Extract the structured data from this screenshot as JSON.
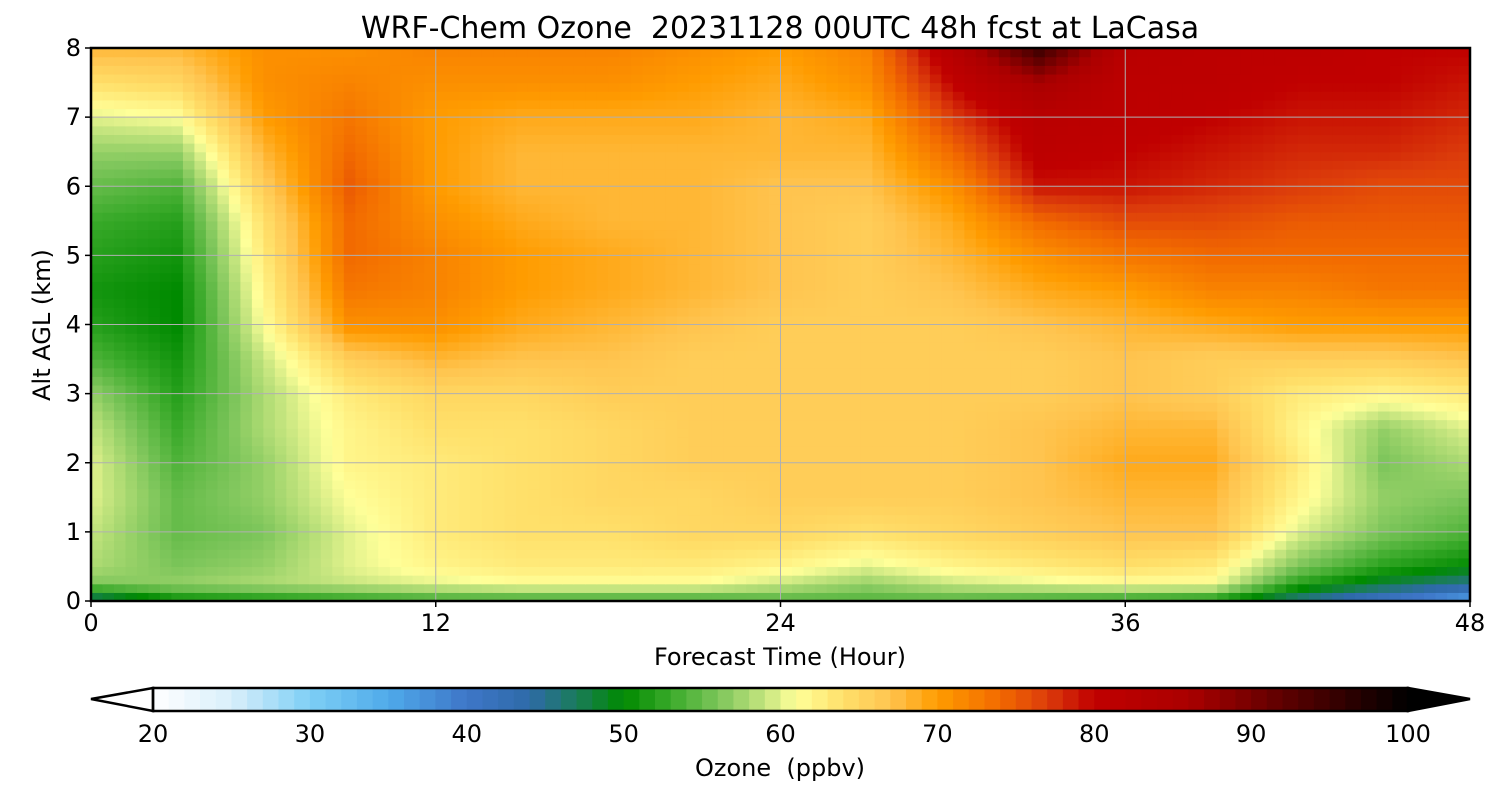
{
  "chart_data": {
    "type": "heatmap",
    "title": "WRF-Chem Ozone  20231128 00UTC 48h fcst at LaCasa",
    "xlabel": "Forecast Time (Hour)",
    "ylabel": "Alt AGL (km)",
    "xlim": [
      0,
      48
    ],
    "ylim": [
      0,
      8
    ],
    "xticks": [
      "0",
      "12",
      "24",
      "36",
      "48"
    ],
    "yticks": [
      "0",
      "1",
      "2",
      "3",
      "4",
      "5",
      "6",
      "7",
      "8"
    ],
    "grid": true,
    "x": [
      0,
      3,
      6,
      9,
      12,
      15,
      18,
      21,
      24,
      27,
      30,
      33,
      36,
      39,
      42,
      45,
      48
    ],
    "y": [
      0,
      0.25,
      0.5,
      1,
      1.5,
      2,
      2.5,
      3,
      3.5,
      4,
      4.5,
      5,
      5.5,
      6,
      6.5,
      7,
      7.5,
      8
    ],
    "z_units": "ppbv",
    "z": [
      [
        45,
        50,
        51,
        52,
        53,
        53,
        53,
        53,
        54,
        54,
        54,
        53,
        52,
        51,
        45,
        40,
        35
      ],
      [
        56,
        57,
        58,
        59,
        60,
        61,
        61,
        61,
        59,
        57,
        59,
        60,
        61,
        61,
        52,
        48,
        45
      ],
      [
        58,
        56,
        57,
        60,
        62,
        63,
        63,
        63,
        62,
        60,
        62,
        63,
        64,
        63,
        56,
        52,
        50
      ],
      [
        59,
        55,
        56,
        60,
        63,
        64,
        64,
        65,
        65,
        64,
        65,
        66,
        67,
        67,
        60,
        56,
        54
      ],
      [
        60,
        55,
        57,
        61,
        63,
        64,
        65,
        65,
        66,
        66,
        66,
        67,
        68,
        68,
        62,
        57,
        56
      ],
      [
        60,
        54,
        57,
        62,
        63,
        64,
        65,
        66,
        66,
        66,
        66,
        67,
        69,
        69,
        63,
        56,
        58
      ],
      [
        59,
        53,
        58,
        62,
        64,
        64,
        65,
        66,
        66,
        66,
        66,
        67,
        68,
        68,
        62,
        57,
        60
      ],
      [
        57,
        52,
        58,
        63,
        65,
        65,
        66,
        66,
        66,
        66,
        66,
        66,
        67,
        66,
        63,
        62,
        63
      ],
      [
        54,
        51,
        59,
        66,
        68,
        67,
        67,
        66,
        66,
        66,
        66,
        66,
        67,
        66,
        66,
        66,
        67
      ],
      [
        52,
        50,
        61,
        71,
        71,
        69,
        68,
        67,
        66,
        66,
        66,
        67,
        68,
        69,
        70,
        70,
        70
      ],
      [
        51,
        50,
        62,
        73,
        72,
        70,
        69,
        68,
        67,
        66,
        67,
        69,
        70,
        72,
        72,
        73,
        73
      ],
      [
        52,
        51,
        63,
        74,
        72,
        70,
        69,
        68,
        67,
        66,
        68,
        71,
        73,
        74,
        74,
        74,
        74
      ],
      [
        53,
        52,
        64,
        74,
        71,
        69,
        68,
        68,
        67,
        66,
        69,
        74,
        76,
        76,
        75,
        75,
        75
      ],
      [
        55,
        54,
        66,
        75,
        70,
        68,
        68,
        68,
        67,
        67,
        71,
        79,
        79,
        78,
        77,
        76,
        76
      ],
      [
        57,
        57,
        68,
        74,
        70,
        68,
        68,
        68,
        68,
        68,
        74,
        81,
        80,
        79,
        78,
        78,
        77
      ],
      [
        60,
        61,
        70,
        73,
        70,
        69,
        69,
        69,
        68,
        69,
        77,
        82,
        81,
        80,
        79,
        79,
        78
      ],
      [
        64,
        65,
        71,
        72,
        71,
        71,
        71,
        70,
        69,
        71,
        80,
        86,
        81,
        81,
        80,
        80,
        79
      ],
      [
        68,
        68,
        71,
        71,
        72,
        72,
        72,
        71,
        70,
        72,
        83,
        95,
        82,
        81,
        81,
        80,
        80
      ]
    ],
    "colorbar": {
      "label": "Ozone  (ppbv)",
      "min": 20,
      "max": 100,
      "ticks": [
        "20",
        "30",
        "40",
        "50",
        "60",
        "70",
        "80",
        "90",
        "100"
      ],
      "extend": "both"
    }
  }
}
